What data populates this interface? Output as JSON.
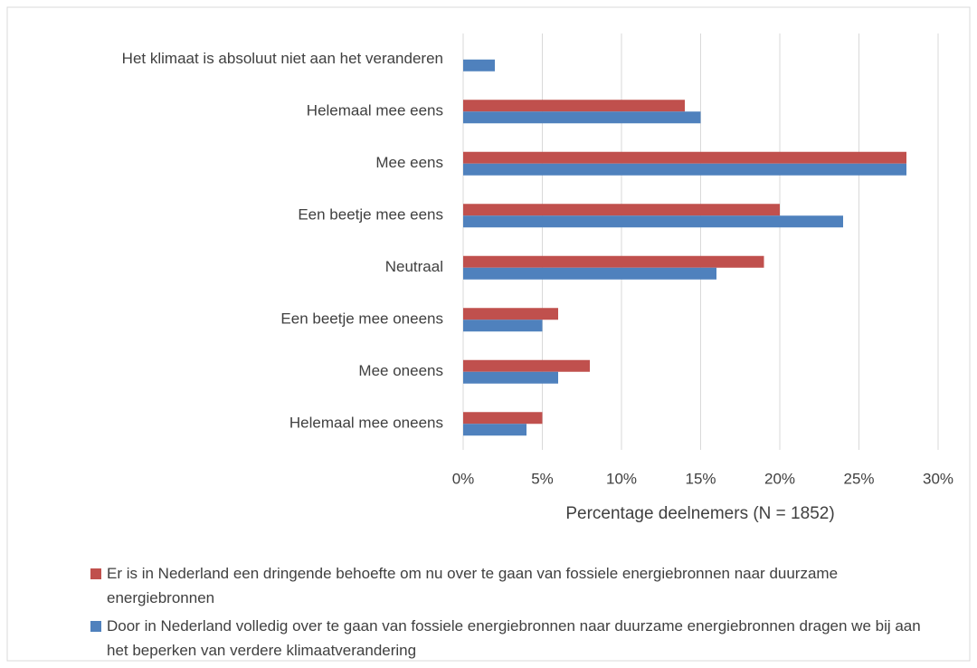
{
  "chart_data": {
    "type": "hbar",
    "categories": [
      "Het klimaat is absoluut niet aan het veranderen",
      "Helemaal mee eens",
      "Mee eens",
      "Een beetje mee eens",
      "Neutraal",
      "Een beetje mee oneens",
      "Mee oneens",
      "Helemaal mee oneens"
    ],
    "series": [
      {
        "name": "Er is in Nederland een dringende behoefte om nu over te gaan van fossiele energiebronnen naar duurzame energiebronnen",
        "color": "#c0504d",
        "values": [
          null,
          14,
          28,
          20,
          19,
          6,
          8,
          5
        ]
      },
      {
        "name": "Door in Nederland volledig over te gaan van fossiele energiebronnen naar duurzame energiebronnen dragen we bij aan het beperken van verdere klimaatverandering",
        "color": "#4f81bd",
        "values": [
          2,
          15,
          28,
          24,
          16,
          5,
          6,
          4
        ]
      }
    ],
    "xlabel": "Percentage deelnemers (N = 1852)",
    "xlim": [
      0,
      30
    ],
    "xticks": [
      {
        "value": 0,
        "label": "0%"
      },
      {
        "value": 5,
        "label": "5%"
      },
      {
        "value": 10,
        "label": "10%"
      },
      {
        "value": 15,
        "label": "15%"
      },
      {
        "value": 20,
        "label": "20%"
      },
      {
        "value": 25,
        "label": "25%"
      },
      {
        "value": 30,
        "label": "30%"
      }
    ],
    "grid": true,
    "legend": "bottom"
  }
}
